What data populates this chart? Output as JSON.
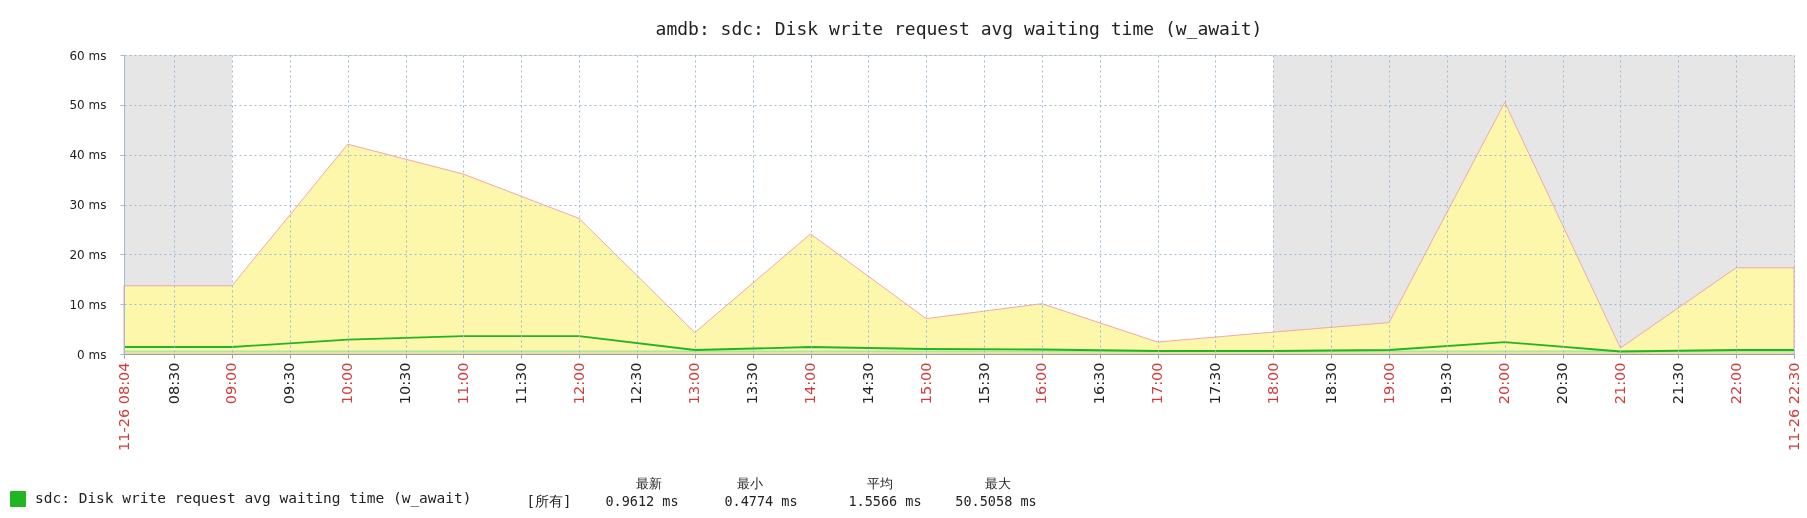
{
  "chart_data": {
    "type": "area",
    "title": "amdb: sdc: Disk write request avg waiting time (w_await)",
    "x": [
      8.0667,
      9,
      10,
      11,
      12,
      13,
      14,
      15,
      16,
      17,
      18,
      19,
      20,
      21,
      22,
      22.5
    ],
    "xlim": [
      8.0667,
      22.5
    ],
    "xticks": [
      {
        "value": 8.0667,
        "label": "11-26 08:04"
      },
      {
        "value": 8.5,
        "label": "08:30"
      },
      {
        "value": 9,
        "label": "09:00"
      },
      {
        "value": 9.5,
        "label": "09:30"
      },
      {
        "value": 10,
        "label": "10:00"
      },
      {
        "value": 10.5,
        "label": "10:30"
      },
      {
        "value": 11,
        "label": "11:00"
      },
      {
        "value": 11.5,
        "label": "11:30"
      },
      {
        "value": 12,
        "label": "12:00"
      },
      {
        "value": 12.5,
        "label": "12:30"
      },
      {
        "value": 13,
        "label": "13:00"
      },
      {
        "value": 13.5,
        "label": "13:30"
      },
      {
        "value": 14,
        "label": "14:00"
      },
      {
        "value": 14.5,
        "label": "14:30"
      },
      {
        "value": 15,
        "label": "15:00"
      },
      {
        "value": 15.5,
        "label": "15:30"
      },
      {
        "value": 16,
        "label": "16:00"
      },
      {
        "value": 16.5,
        "label": "16:30"
      },
      {
        "value": 17,
        "label": "17:00"
      },
      {
        "value": 17.5,
        "label": "17:30"
      },
      {
        "value": 18,
        "label": "18:00"
      },
      {
        "value": 18.5,
        "label": "18:30"
      },
      {
        "value": 19,
        "label": "19:00"
      },
      {
        "value": 19.5,
        "label": "19:30"
      },
      {
        "value": 20,
        "label": "20:00"
      },
      {
        "value": 20.5,
        "label": "20:30"
      },
      {
        "value": 21,
        "label": "21:00"
      },
      {
        "value": 21.5,
        "label": "21:30"
      },
      {
        "value": 22,
        "label": "22:00"
      },
      {
        "value": 22.5,
        "label": "11-26 22:30"
      }
    ],
    "ylim": [
      0,
      60
    ],
    "yticks": [
      {
        "value": 0,
        "label": "0 ms"
      },
      {
        "value": 10,
        "label": "10 ms"
      },
      {
        "value": 20,
        "label": "20 ms"
      },
      {
        "value": 30,
        "label": "30 ms"
      },
      {
        "value": 40,
        "label": "40 ms"
      },
      {
        "value": 50,
        "label": "50 ms"
      },
      {
        "value": 60,
        "label": "60 ms"
      }
    ],
    "grid": true,
    "legend": "bottom left",
    "series": [
      {
        "color": "#fcf7aa",
        "values": [
          13.7,
          13.7,
          42.1,
          36.1,
          27.2,
          4.3,
          24.1,
          7.1,
          10.1,
          2.4,
          4.4,
          6.3,
          50.5,
          1.2,
          17.3,
          17.3
        ]
      },
      {
        "type": "line",
        "color": "#a8e8a0",
        "values": [
          0.5,
          0.5,
          0.5,
          0.5,
          0.5,
          0.5,
          0.5,
          0.5,
          0.5,
          0.5,
          0.5,
          0.5,
          0.5,
          0.5,
          0.5,
          0.5
        ]
      },
      {
        "type": "line",
        "name": "sdc: Disk write request avg waiting time (w_await)",
        "color": "#22b422",
        "values": [
          1.4,
          1.4,
          2.9,
          3.6,
          3.6,
          0.8,
          1.4,
          1.0,
          0.9,
          0.6,
          0.6,
          0.8,
          2.4,
          0.5,
          0.8,
          0.8
        ]
      }
    ],
    "bands": [
      {
        "axis": "x",
        "from": 8.0667,
        "to": 9,
        "color": "#e6e6e6"
      },
      {
        "axis": "x",
        "from": 18,
        "to": 22.5,
        "color": "#e6e6e6"
      }
    ],
    "annotations": [
      "最新",
      "最小",
      "平均",
      "最大",
      "[所有]",
      "0.9612 ms",
      "0.4774 ms",
      "1.5566 ms",
      "50.5058 ms"
    ]
  }
}
